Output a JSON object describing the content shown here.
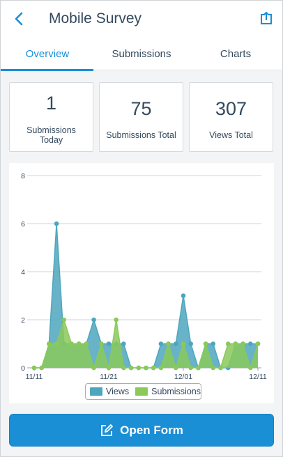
{
  "header": {
    "title": "Mobile Survey",
    "back_icon": "back-chevron-icon",
    "share_icon": "share-upload-icon"
  },
  "tabs": [
    {
      "label": "Overview",
      "active": true
    },
    {
      "label": "Submissions",
      "active": false
    },
    {
      "label": "Charts",
      "active": false
    }
  ],
  "stats": [
    {
      "value": "1",
      "label_line1": "Submissions",
      "label_line2": "Today"
    },
    {
      "value": "75",
      "label_line1": "Submissions Total",
      "label_line2": ""
    },
    {
      "value": "307",
      "label_line1": "Views Total",
      "label_line2": ""
    }
  ],
  "colors": {
    "accent": "#1a8fd6",
    "views": "#4ea6bd",
    "submissions": "#8ac95a"
  },
  "chart_data": {
    "type": "area",
    "y_ticks": [
      "0",
      "2",
      "4",
      "6",
      "8"
    ],
    "ylim": [
      0,
      8
    ],
    "x_tick_labels": [
      "11/11",
      "11/21",
      "12/01",
      "12/11"
    ],
    "x_tick_positions": [
      0,
      10,
      20,
      30
    ],
    "xlim": [
      0,
      30
    ],
    "grid": true,
    "legend_position": "bottom-center",
    "series": [
      {
        "name": "Views",
        "values": [
          0,
          0,
          1,
          6,
          1,
          1,
          1,
          1,
          2,
          1,
          1,
          1,
          1,
          0,
          0,
          0,
          0,
          1,
          1,
          1,
          3,
          1,
          0,
          1,
          1,
          0,
          0,
          1,
          1,
          1,
          1
        ]
      },
      {
        "name": "Submissions",
        "values": [
          0,
          0,
          1,
          1,
          2,
          1,
          1,
          1,
          0,
          1,
          0,
          2,
          0,
          0,
          0,
          0,
          0,
          0,
          1,
          0,
          1,
          0,
          0,
          1,
          0,
          0,
          1,
          1,
          1,
          0,
          1
        ]
      }
    ]
  },
  "open_button": {
    "label": "Open Form",
    "icon": "edit-form-icon"
  }
}
